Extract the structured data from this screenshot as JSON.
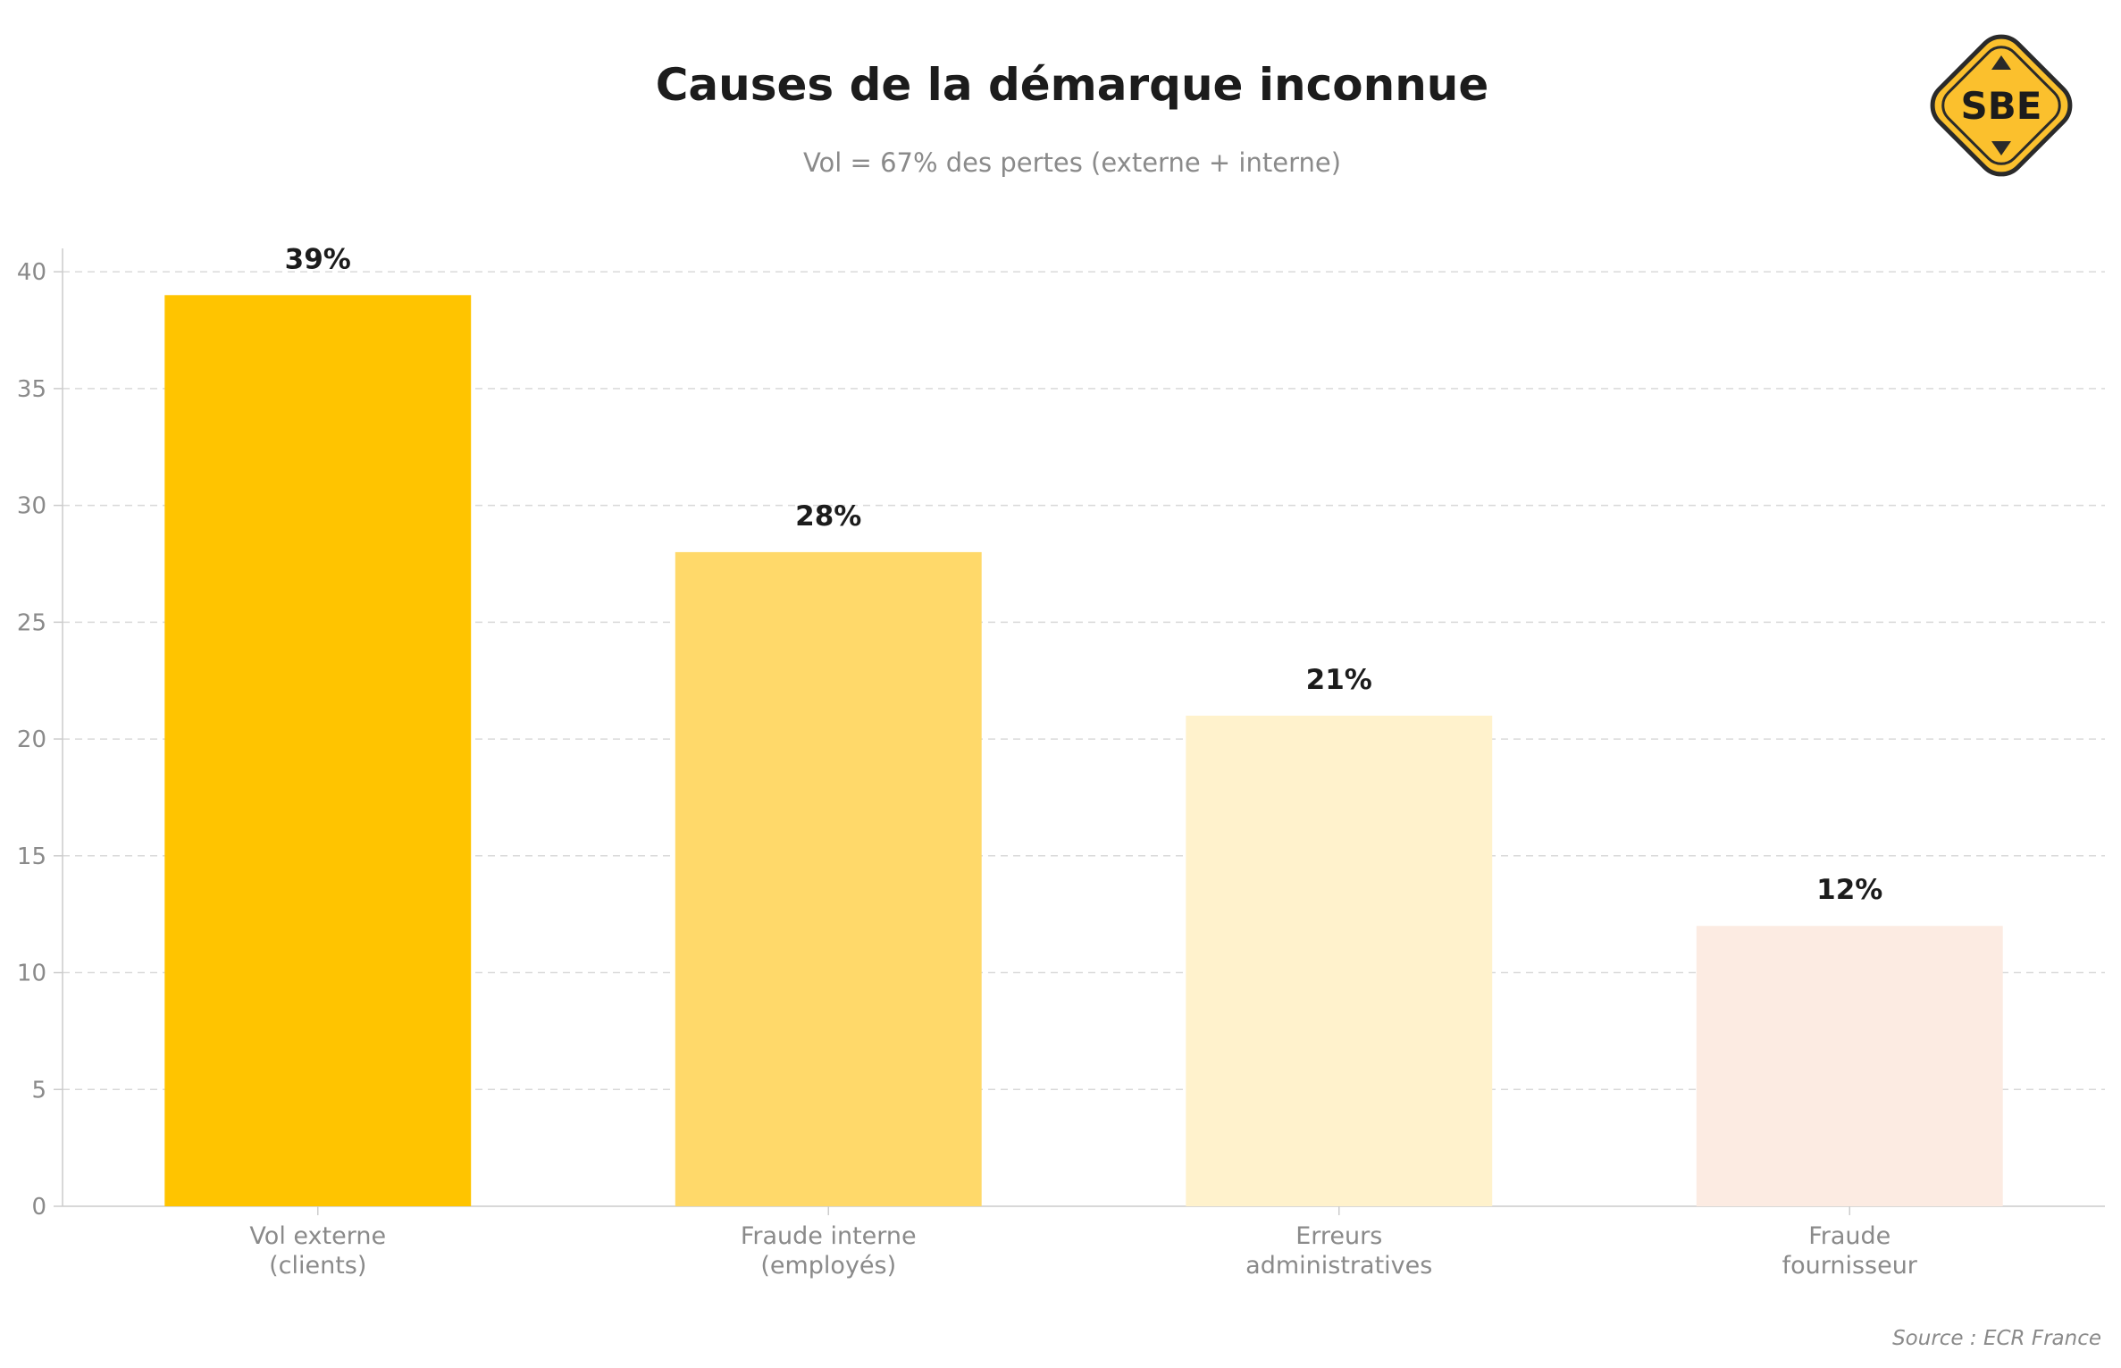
{
  "chart_data": {
    "type": "bar",
    "title": "Causes de la démarque inconnue",
    "subtitle": "Vol = 67% des pertes (externe + interne)",
    "categories": [
      [
        "Vol externe",
        "(clients)"
      ],
      [
        "Fraude interne",
        "(employés)"
      ],
      [
        "Erreurs",
        "administratives"
      ],
      [
        "Fraude",
        "fournisseur"
      ]
    ],
    "values": [
      39,
      28,
      21,
      12
    ],
    "data_labels": [
      "39%",
      "28%",
      "21%",
      "12%"
    ],
    "colors": [
      "#FFC400",
      "#FFD96A",
      "#FFF2CC",
      "#FCEBE2"
    ],
    "ylim": [
      0,
      41
    ],
    "yticks": [
      0,
      5,
      10,
      15,
      20,
      25,
      30,
      35,
      40
    ],
    "grid": true,
    "xlabel": "",
    "ylabel": ""
  },
  "source": "Source : ECR France",
  "logo": {
    "text": "SBE",
    "color": "#FBC02D",
    "icon": "sbe-logo-icon"
  }
}
